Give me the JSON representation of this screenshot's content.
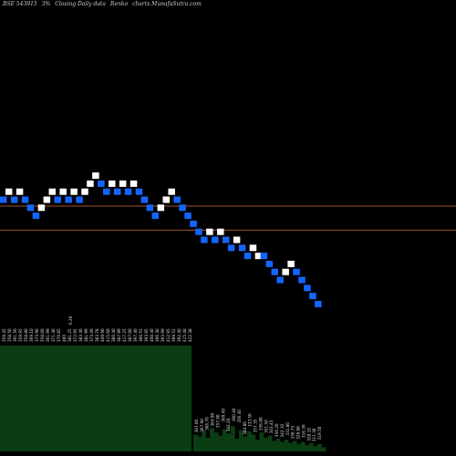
{
  "header": {
    "symbol": "BSE 543915",
    "box_size": "3%",
    "description": "Closing Daily data",
    "chart_kind": "Renko",
    "site": "charts MunafaSutra.com"
  },
  "colors": {
    "background": "#000000",
    "up_brick": "#ffffff",
    "down_brick": "#1565ff",
    "ref_line": "#a0522d",
    "volume_fill": "#0b3d12",
    "label_text": "#dddddd"
  },
  "chart_data": {
    "type": "renko",
    "title": "BSE 543915 3%- Closing Daily data Renko charts MunafaSutra.com",
    "box_size_percent": 3,
    "bricks": [
      {
        "dir": "down",
        "level": 0
      },
      {
        "dir": "up",
        "level": 1
      },
      {
        "dir": "down",
        "level": 0
      },
      {
        "dir": "up",
        "level": 1
      },
      {
        "dir": "down",
        "level": 0
      },
      {
        "dir": "down",
        "level": -1
      },
      {
        "dir": "down",
        "level": -2
      },
      {
        "dir": "up",
        "level": -1
      },
      {
        "dir": "up",
        "level": 0
      },
      {
        "dir": "up",
        "level": 1
      },
      {
        "dir": "down",
        "level": 0
      },
      {
        "dir": "up",
        "level": 1
      },
      {
        "dir": "down",
        "level": 0
      },
      {
        "dir": "up",
        "level": 1
      },
      {
        "dir": "down",
        "level": 0
      },
      {
        "dir": "up",
        "level": 1
      },
      {
        "dir": "up",
        "level": 2
      },
      {
        "dir": "up",
        "level": 3
      },
      {
        "dir": "down",
        "level": 2
      },
      {
        "dir": "down",
        "level": 1
      },
      {
        "dir": "up",
        "level": 2
      },
      {
        "dir": "down",
        "level": 1
      },
      {
        "dir": "up",
        "level": 2
      },
      {
        "dir": "down",
        "level": 1
      },
      {
        "dir": "up",
        "level": 2
      },
      {
        "dir": "down",
        "level": 1
      },
      {
        "dir": "down",
        "level": 0
      },
      {
        "dir": "down",
        "level": -1
      },
      {
        "dir": "down",
        "level": -2
      },
      {
        "dir": "up",
        "level": -1
      },
      {
        "dir": "up",
        "level": 0
      },
      {
        "dir": "up",
        "level": 1
      },
      {
        "dir": "down",
        "level": 0
      },
      {
        "dir": "down",
        "level": -1
      },
      {
        "dir": "down",
        "level": -2
      },
      {
        "dir": "down",
        "level": -3
      },
      {
        "dir": "down",
        "level": -4
      },
      {
        "dir": "down",
        "level": -5
      },
      {
        "dir": "up",
        "level": -4
      },
      {
        "dir": "down",
        "level": -5
      },
      {
        "dir": "up",
        "level": -4
      },
      {
        "dir": "down",
        "level": -5
      },
      {
        "dir": "down",
        "level": -6
      },
      {
        "dir": "up",
        "level": -5
      },
      {
        "dir": "down",
        "level": -6
      },
      {
        "dir": "down",
        "level": -7
      },
      {
        "dir": "up",
        "level": -6
      },
      {
        "dir": "up",
        "level": -7
      },
      {
        "dir": "down",
        "level": -7
      },
      {
        "dir": "down",
        "level": -8
      },
      {
        "dir": "down",
        "level": -9
      },
      {
        "dir": "down",
        "level": -10
      },
      {
        "dir": "up",
        "level": -9
      },
      {
        "dir": "up",
        "level": -8
      },
      {
        "dir": "down",
        "level": -9
      },
      {
        "dir": "down",
        "level": -10
      },
      {
        "dir": "down",
        "level": -11
      },
      {
        "dir": "down",
        "level": -12
      },
      {
        "dir": "down",
        "level": -13
      }
    ],
    "reference_lines": [
      {
        "label": "upper",
        "level": -0.4
      },
      {
        "label": "lower",
        "level": -3.4
      }
    ],
    "price_labels_left": [
      "359.45",
      "358.50",
      "361.50",
      "359.95",
      "358.80",
      "369.10",
      "373.90",
      "358.00",
      "361.99",
      "371.40",
      "370.85",
      "400",
      "381.25",
      "372.95",
      "383.40",
      "381.99",
      "373.49",
      "383.78",
      "409.90",
      "415.60",
      "380.40",
      "387.99",
      "417.25",
      "387.00",
      "397.40",
      "390.55",
      "393.95",
      "400.40",
      "396.30",
      "393.99",
      "412.95",
      "399.52",
      "392.40",
      "415.48",
      "422.38"
    ],
    "price_label_peak": "6.29",
    "price_labels_right": [
      "387.00",
      "367.90",
      "366.70",
      "364.90",
      "357.00",
      "369.49",
      "382.20",
      "360.40",
      "356.30",
      "384.80",
      "333.50",
      "357.35",
      "336.80",
      "351.50",
      "343.45",
      "356.20",
      "342.10",
      "331.80",
      "336.75",
      "328.88",
      "316.36",
      "320.10",
      "311.30",
      "319.50"
    ],
    "volume_left_bars": 42,
    "volume_left_level": 1.0,
    "volume_right_levels": [
      0.16,
      0.14,
      0.2,
      0.13,
      0.22,
      0.18,
      0.15,
      0.21,
      0.17,
      0.24,
      0.12,
      0.2,
      0.14,
      0.19,
      0.16,
      0.11,
      0.18,
      0.13,
      0.15,
      0.1,
      0.12,
      0.09,
      0.11,
      0.08,
      0.1,
      0.07,
      0.09,
      0.06,
      0.08,
      0.05,
      0.07,
      0.04
    ]
  }
}
